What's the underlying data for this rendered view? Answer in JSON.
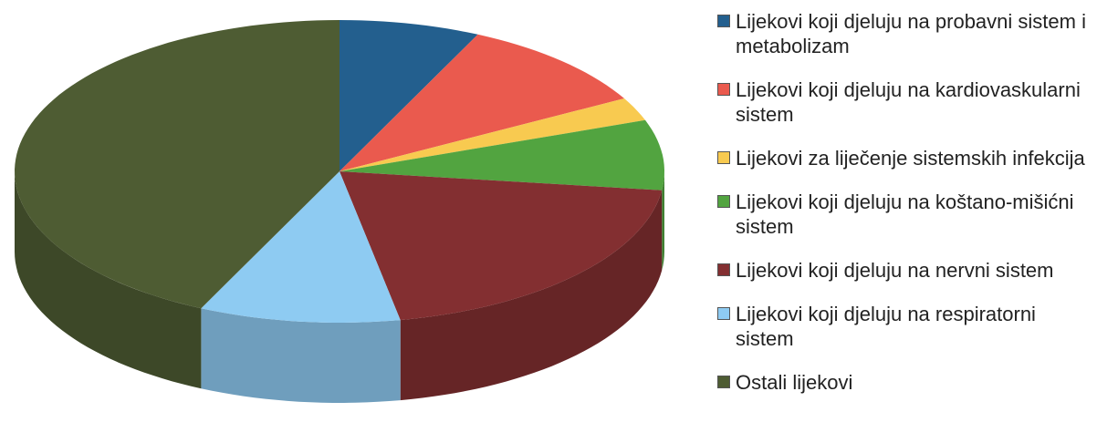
{
  "chart_data": {
    "type": "pie",
    "categories": [
      "Lijekovi koji djeluju na probavni sistem i metabolizam",
      "Lijekovi koji djeluju na kardiovaskularni sistem",
      "Lijekovi za liječenje sistemskih infekcija",
      "Lijekovi koji djeluju na koštano-mišićni sistem",
      "Lijekovi koji djeluju na nervni sistem",
      "Lijekovi koji djeluju na respiratorni sistem",
      "Ostali lijekovi"
    ],
    "values": [
      7,
      10,
      2.5,
      7.5,
      20,
      10,
      43
    ],
    "colors": [
      "#235f8e",
      "#ea5a4e",
      "#f8ca50",
      "#52a440",
      "#832f31",
      "#8ecbf2",
      "#4e5c33"
    ],
    "legend": "right",
    "three_d": true
  }
}
